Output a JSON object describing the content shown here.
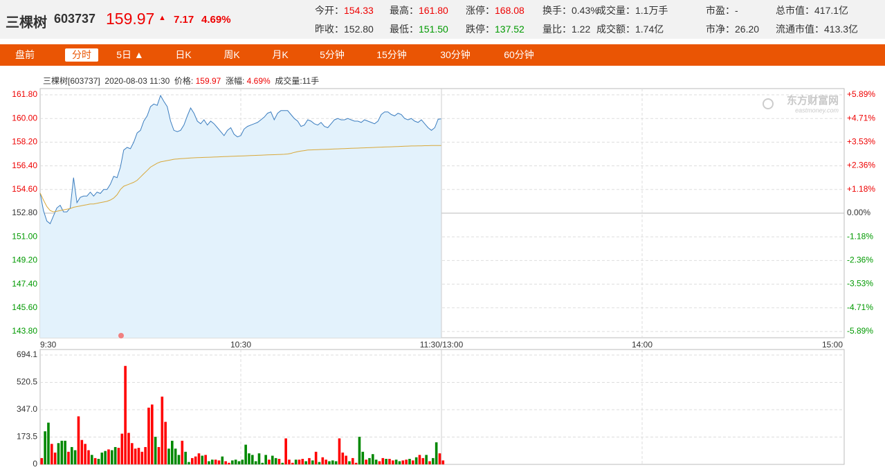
{
  "header": {
    "name": "三棵树",
    "code": "603737",
    "price": "159.97",
    "arrow": "▲",
    "change": "7.17",
    "change_pct": "4.69%",
    "stats": [
      [
        {
          "label": "今开：",
          "value": "154.33",
          "color": "#e00"
        },
        {
          "label": "最高：",
          "value": "161.80",
          "color": "#e00"
        },
        {
          "label": "涨停：",
          "value": "168.08",
          "color": "#e00"
        },
        {
          "label": "换手：",
          "value": "0.43%",
          "color": "#333"
        },
        {
          "label": "成交量：",
          "value": "1.1万手",
          "color": "#333"
        },
        {
          "label": "市盈：",
          "value": "-",
          "color": "#333"
        },
        {
          "label": "总市值：",
          "value": "417.1亿",
          "color": "#333"
        }
      ],
      [
        {
          "label": "昨收：",
          "value": "152.80",
          "color": "#333"
        },
        {
          "label": "最低：",
          "value": "151.50",
          "color": "#090"
        },
        {
          "label": "跌停：",
          "value": "137.52",
          "color": "#090"
        },
        {
          "label": "量比：",
          "value": "1.22",
          "color": "#333"
        },
        {
          "label": "成交额：",
          "value": "1.74亿",
          "color": "#333"
        },
        {
          "label": "市净：",
          "value": "26.20",
          "color": "#333"
        },
        {
          "label": "流通市值：",
          "value": "413.3亿",
          "color": "#333"
        }
      ]
    ]
  },
  "tabs": {
    "items": [
      "盘前",
      "分时",
      "5日 ▲",
      "日K",
      "周K",
      "月K",
      "5分钟",
      "15分钟",
      "30分钟",
      "60分钟"
    ],
    "selected": 1
  },
  "info": {
    "stock": "三棵树[603737]",
    "time": "2020-08-03 11:30",
    "price_label": "价格:",
    "price": "159.97",
    "pct_label": "涨幅:",
    "pct": "4.69%",
    "volume": "成交量:11手"
  },
  "watermark": {
    "name": "东方财富网",
    "domain": "eastmoney.com"
  },
  "chart_data": [
    {
      "type": "line",
      "grid": true,
      "up_color": "#e00",
      "down_color": "#090",
      "flat_color": "#333",
      "x": [
        0,
        1,
        2,
        3,
        4,
        5,
        6,
        7,
        8,
        9,
        10,
        11,
        12,
        13,
        14,
        15,
        16,
        17,
        18,
        19,
        20,
        21,
        22,
        23,
        24,
        25,
        26,
        27,
        28,
        29,
        30,
        31,
        32,
        33,
        34,
        35,
        36,
        37,
        38,
        39,
        40,
        41,
        42,
        43,
        44,
        45,
        46,
        47,
        48,
        49,
        50,
        51,
        52,
        53,
        54,
        55,
        56,
        57,
        58,
        59,
        60,
        61,
        62,
        63,
        64,
        65,
        66,
        67,
        68,
        69,
        70,
        71,
        72,
        73,
        74,
        75,
        76,
        77,
        78,
        79,
        80,
        81,
        82,
        83,
        84,
        85,
        86,
        87,
        88,
        89,
        90,
        91,
        92,
        93,
        94,
        95,
        96,
        97,
        98,
        99,
        100,
        101,
        102,
        103,
        104,
        105,
        106,
        107,
        108,
        109,
        110,
        111,
        112,
        113,
        114,
        115,
        116,
        117,
        118,
        119,
        120
      ],
      "xlim": [
        0,
        240
      ],
      "xticks": [
        {
          "value": 0,
          "label": "9:30"
        },
        {
          "value": 60,
          "label": "10:30"
        },
        {
          "value": 120,
          "label": "11:30/13:00"
        },
        {
          "value": 180,
          "label": "14:00"
        },
        {
          "value": 240,
          "label": "15:00"
        }
      ],
      "ylim": [
        143.8,
        161.8
      ],
      "yticks": [
        {
          "value": 161.8,
          "label": "161.80"
        },
        {
          "value": 160,
          "label": "160.00"
        },
        {
          "value": 158.2,
          "label": "158.20"
        },
        {
          "value": 156.4,
          "label": "156.40"
        },
        {
          "value": 154.6,
          "label": "154.60"
        },
        {
          "value": 152.8,
          "label": "152.80"
        },
        {
          "value": 151,
          "label": "151.00"
        },
        {
          "value": 149.2,
          "label": "149.20"
        },
        {
          "value": 147.4,
          "label": "147.40"
        },
        {
          "value": 145.6,
          "label": "145.60"
        },
        {
          "value": 143.8,
          "label": "143.80"
        }
      ],
      "y2lim": [
        -5.89,
        5.89
      ],
      "y2ticks": [
        {
          "value": 5.89,
          "label": "+5.89%"
        },
        {
          "value": 4.71,
          "label": "+4.71%"
        },
        {
          "value": 3.53,
          "label": "+3.53%"
        },
        {
          "value": 2.36,
          "label": "+2.36%"
        },
        {
          "value": 1.18,
          "label": "+1.18%"
        },
        {
          "value": 0,
          "label": "0.00%"
        },
        {
          "value": -1.18,
          "label": "-1.18%"
        },
        {
          "value": -2.36,
          "label": "-2.36%"
        },
        {
          "value": -3.53,
          "label": "-3.53%"
        },
        {
          "value": -4.71,
          "label": "-4.71%"
        },
        {
          "value": -5.89,
          "label": "-5.89%"
        }
      ],
      "series": [
        {
          "color": "#3b7dbf",
          "fill": "#e3f2fc",
          "values": [
            154.33,
            153.0,
            152.2,
            152.0,
            152.6,
            153.2,
            153.4,
            152.9,
            152.9,
            153.2,
            155.5,
            153.6,
            154.0,
            154.1,
            154.1,
            154.4,
            154.1,
            154.4,
            154.3,
            154.6,
            154.6,
            155.0,
            155.6,
            155.5,
            156.3,
            157.6,
            157.8,
            157.7,
            158.2,
            158.9,
            159.1,
            159.8,
            160.2,
            160.9,
            161.1,
            161.0,
            161.75,
            161.3,
            160.9,
            159.8,
            159.1,
            159.0,
            159.1,
            159.5,
            160.2,
            160.8,
            160.4,
            159.8,
            159.6,
            159.9,
            159.5,
            159.8,
            159.6,
            159.3,
            159.0,
            158.7,
            159.1,
            159.3,
            158.8,
            158.6,
            158.7,
            159.2,
            159.4,
            159.5,
            159.6,
            159.7,
            159.9,
            160.1,
            160.4,
            160.5,
            159.9,
            160.4,
            160.6,
            160.6,
            160.6,
            160.3,
            160.0,
            159.8,
            159.4,
            159.5,
            159.9,
            159.8,
            159.6,
            159.5,
            159.7,
            159.4,
            159.3,
            159.6,
            159.9,
            160.0,
            159.9,
            159.9,
            160.0,
            159.9,
            159.8,
            159.8,
            159.7,
            159.9,
            159.8,
            159.7,
            159.6,
            159.8,
            160.3,
            160.5,
            160.5,
            160.3,
            160.2,
            160.4,
            160.3,
            160.0,
            159.9,
            160.0,
            159.8,
            159.7,
            159.9,
            159.6,
            159.3,
            159.1,
            159.3,
            159.95,
            159.97
          ]
        },
        {
          "color": "#d8a83a",
          "values": [
            154.33,
            153.8,
            153.3,
            153.0,
            152.9,
            152.95,
            153.0,
            153.05,
            153.1,
            153.15,
            153.25,
            153.3,
            153.35,
            153.4,
            153.45,
            153.5,
            153.5,
            153.55,
            153.6,
            153.65,
            153.7,
            153.8,
            153.95,
            154.2,
            154.6,
            154.85,
            154.95,
            155.05,
            155.15,
            155.3,
            155.55,
            155.8,
            156.05,
            156.3,
            156.45,
            156.6,
            156.7,
            156.75,
            156.8,
            156.85,
            156.9,
            156.92,
            156.94,
            156.96,
            156.98,
            157.0,
            157.01,
            157.02,
            157.03,
            157.04,
            157.05,
            157.06,
            157.07,
            157.08,
            157.09,
            157.1,
            157.11,
            157.12,
            157.13,
            157.14,
            157.15,
            157.16,
            157.17,
            157.18,
            157.19,
            157.2,
            157.21,
            157.22,
            157.23,
            157.24,
            157.25,
            157.26,
            157.27,
            157.28,
            157.3,
            157.35,
            157.42,
            157.48,
            157.52,
            157.56,
            157.6,
            157.61,
            157.62,
            157.63,
            157.64,
            157.65,
            157.66,
            157.67,
            157.68,
            157.69,
            157.7,
            157.71,
            157.72,
            157.73,
            157.74,
            157.75,
            157.76,
            157.77,
            157.78,
            157.79,
            157.8,
            157.81,
            157.82,
            157.83,
            157.84,
            157.85,
            157.86,
            157.87,
            157.88,
            157.89,
            157.9,
            157.91,
            157.91,
            157.92,
            157.92,
            157.93,
            157.93,
            157.94,
            157.94,
            157.95,
            157.95
          ]
        }
      ]
    },
    {
      "type": "bar",
      "grid": true,
      "x": [
        0,
        1,
        2,
        3,
        4,
        5,
        6,
        7,
        8,
        9,
        10,
        11,
        12,
        13,
        14,
        15,
        16,
        17,
        18,
        19,
        20,
        21,
        22,
        23,
        24,
        25,
        26,
        27,
        28,
        29,
        30,
        31,
        32,
        33,
        34,
        35,
        36,
        37,
        38,
        39,
        40,
        41,
        42,
        43,
        44,
        45,
        46,
        47,
        48,
        49,
        50,
        51,
        52,
        53,
        54,
        55,
        56,
        57,
        58,
        59,
        60,
        61,
        62,
        63,
        64,
        65,
        66,
        67,
        68,
        69,
        70,
        71,
        72,
        73,
        74,
        75,
        76,
        77,
        78,
        79,
        80,
        81,
        82,
        83,
        84,
        85,
        86,
        87,
        88,
        89,
        90,
        91,
        92,
        93,
        94,
        95,
        96,
        97,
        98,
        99,
        100,
        101,
        102,
        103,
        104,
        105,
        106,
        107,
        108,
        109,
        110,
        111,
        112,
        113,
        114,
        115,
        116,
        117,
        118,
        119,
        120
      ],
      "xlim": [
        0,
        240
      ],
      "ylim": [
        0,
        694.1
      ],
      "yticks": [
        0,
        173.5,
        {
          "value": 347,
          "label": "347.0"
        },
        520.5,
        694.1
      ],
      "values": [
        40,
        210,
        265,
        130,
        75,
        135,
        150,
        150,
        80,
        110,
        90,
        305,
        155,
        130,
        90,
        60,
        40,
        35,
        75,
        85,
        95,
        90,
        110,
        105,
        195,
        625,
        200,
        135,
        100,
        105,
        80,
        110,
        360,
        380,
        175,
        110,
        430,
        270,
        100,
        150,
        100,
        60,
        150,
        80,
        15,
        40,
        50,
        70,
        55,
        60,
        20,
        30,
        30,
        25,
        50,
        20,
        10,
        25,
        30,
        20,
        30,
        125,
        70,
        60,
        20,
        70,
        10,
        60,
        30,
        55,
        40,
        35,
        10,
        165,
        30,
        10,
        30,
        30,
        35,
        20,
        40,
        25,
        80,
        15,
        45,
        30,
        20,
        25,
        20,
        165,
        75,
        55,
        20,
        40,
        10,
        175,
        80,
        30,
        40,
        65,
        30,
        20,
        40,
        35,
        35,
        25,
        30,
        20,
        25,
        30,
        35,
        25,
        45,
        60,
        40,
        60,
        20,
        40,
        140,
        70,
        25
      ],
      "colors": [
        "#f00",
        "#080",
        "#080",
        "#f00",
        "#f00",
        "#080",
        "#080",
        "#080",
        "#f00",
        "#080",
        "#080",
        "#f00",
        "#f00",
        "#f00",
        "#f00",
        "#080",
        "#f00",
        "#080",
        "#080",
        "#080",
        "#f00",
        "#080",
        "#080",
        "#f00",
        "#f00",
        "#f00",
        "#f00",
        "#f00",
        "#f00",
        "#f00",
        "#f00",
        "#f00",
        "#f00",
        "#f00",
        "#080",
        "#f00",
        "#f00",
        "#f00",
        "#080",
        "#080",
        "#080",
        "#080",
        "#f00",
        "#080",
        "#080",
        "#f00",
        "#f00",
        "#f00",
        "#080",
        "#f00",
        "#080",
        "#080",
        "#f00",
        "#f00",
        "#080",
        "#f00",
        "#f00",
        "#080",
        "#080",
        "#080",
        "#080",
        "#080",
        "#080",
        "#080",
        "#080",
        "#080",
        "#080",
        "#080",
        "#f00",
        "#080",
        "#080",
        "#f00",
        "#080",
        "#f00",
        "#f00",
        "#f00",
        "#080",
        "#f00",
        "#f00",
        "#080",
        "#f00",
        "#080",
        "#f00",
        "#080",
        "#f00",
        "#f00",
        "#080",
        "#080",
        "#080",
        "#f00",
        "#f00",
        "#f00",
        "#080",
        "#f00",
        "#f00",
        "#080",
        "#080",
        "#f00",
        "#080",
        "#080",
        "#080",
        "#f00",
        "#f00",
        "#080",
        "#f00",
        "#f00",
        "#080",
        "#080",
        "#f00",
        "#f00",
        "#080",
        "#f00",
        "#080",
        "#f00",
        "#f00",
        "#080",
        "#f00",
        "#080",
        "#080",
        "#f00",
        "#f00"
      ]
    }
  ]
}
